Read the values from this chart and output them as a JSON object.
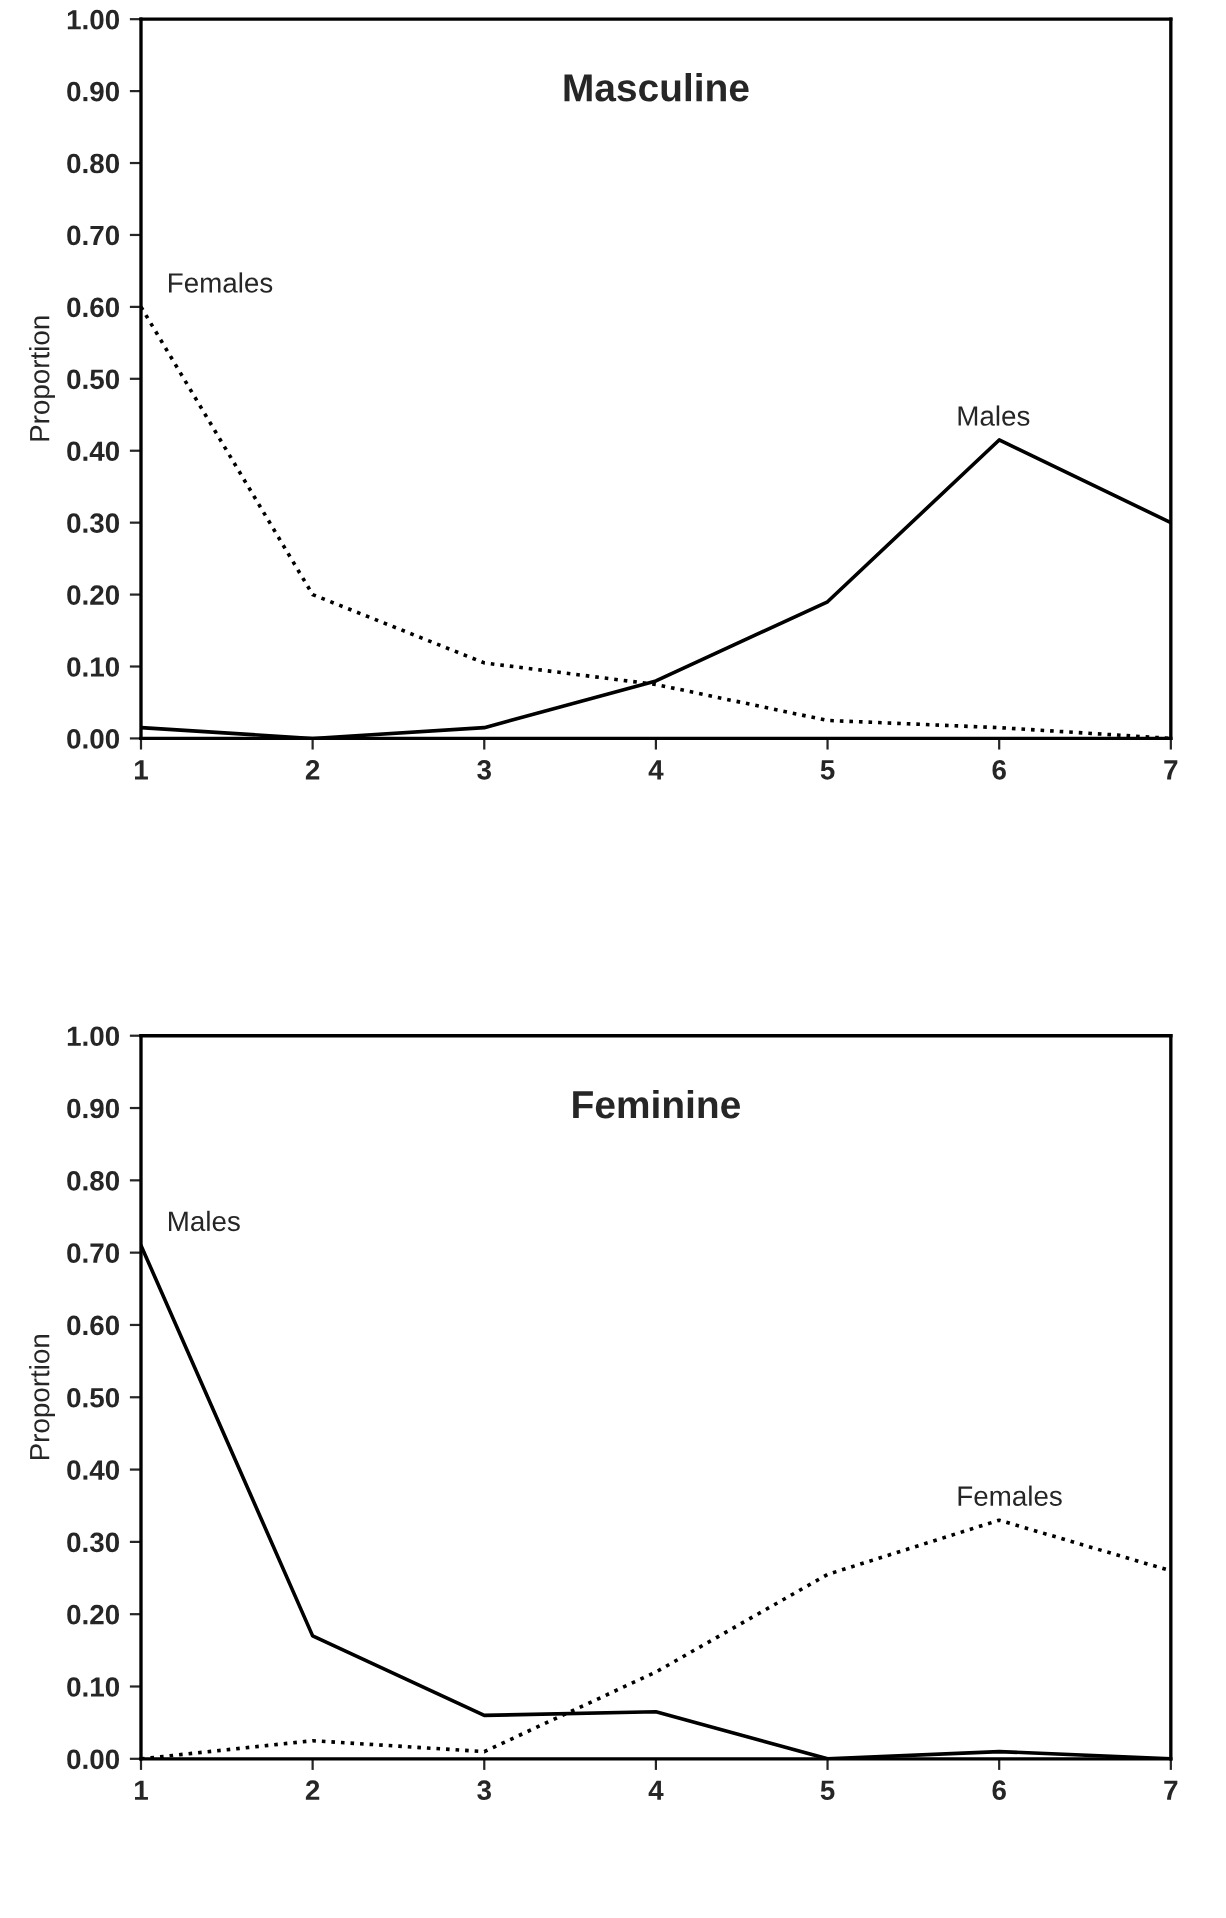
{
  "chart_data": [
    {
      "type": "line",
      "title": "Masculine",
      "ylabel": "Proportion",
      "x": [
        1,
        2,
        3,
        4,
        5,
        6,
        7
      ],
      "xlim": [
        1,
        7
      ],
      "xticks": [
        1,
        2,
        3,
        4,
        5,
        6,
        7
      ],
      "ylim": [
        0,
        1
      ],
      "yticks": [
        {
          "value": 0,
          "label": "0.00"
        },
        {
          "value": 0.1,
          "label": "0.10"
        },
        {
          "value": 0.2,
          "label": "0.20"
        },
        {
          "value": 0.3,
          "label": "0.30"
        },
        {
          "value": 0.4,
          "label": "0.40"
        },
        {
          "value": 0.5,
          "label": "0.50"
        },
        {
          "value": 0.6,
          "label": "0.60"
        },
        {
          "value": 0.7,
          "label": "0.70"
        },
        {
          "value": 0.8,
          "label": "0.80"
        },
        {
          "value": 0.9,
          "label": "0.90"
        },
        {
          "value": 1,
          "label": "1.00"
        }
      ],
      "grid": false,
      "legend": false,
      "series": [
        {
          "name": "Females",
          "color": "#000000",
          "line_style": "dotted",
          "values": [
            0.6,
            0.2,
            0.105,
            0.075,
            0.025,
            0.015,
            0.0
          ]
        },
        {
          "name": "Males",
          "color": "#000000",
          "line_style": "solid",
          "values": [
            0.015,
            0.0,
            0.015,
            0.08,
            0.19,
            0.415,
            0.3
          ]
        }
      ]
    },
    {
      "type": "line",
      "title": "Feminine",
      "ylabel": "Proportion",
      "x": [
        1,
        2,
        3,
        4,
        5,
        6,
        7
      ],
      "xlim": [
        1,
        7
      ],
      "xticks": [
        1,
        2,
        3,
        4,
        5,
        6,
        7
      ],
      "ylim": [
        0,
        1
      ],
      "yticks": [
        {
          "value": 0,
          "label": "0.00"
        },
        {
          "value": 0.1,
          "label": "0.10"
        },
        {
          "value": 0.2,
          "label": "0.20"
        },
        {
          "value": 0.3,
          "label": "0.30"
        },
        {
          "value": 0.4,
          "label": "0.40"
        },
        {
          "value": 0.5,
          "label": "0.50"
        },
        {
          "value": 0.6,
          "label": "0.60"
        },
        {
          "value": 0.7,
          "label": "0.70"
        },
        {
          "value": 0.8,
          "label": "0.80"
        },
        {
          "value": 0.9,
          "label": "0.90"
        },
        {
          "value": 1,
          "label": "1.00"
        }
      ],
      "grid": false,
      "legend": false,
      "series": [
        {
          "name": "Males",
          "color": "#000000",
          "line_style": "solid",
          "values": [
            0.71,
            0.17,
            0.06,
            0.065,
            0.0,
            0.01,
            0.0
          ]
        },
        {
          "name": "Females",
          "color": "#000000",
          "line_style": "dotted",
          "values": [
            0.0,
            0.025,
            0.01,
            0.12,
            0.255,
            0.33,
            0.26
          ]
        }
      ]
    }
  ]
}
